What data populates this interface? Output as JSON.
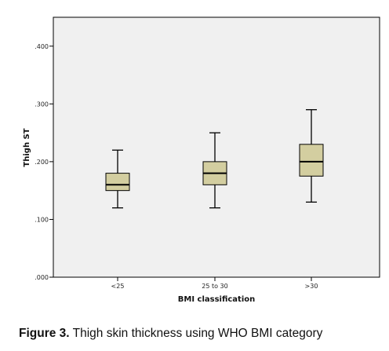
{
  "chart_data": {
    "type": "box",
    "categories": [
      "<25",
      "25 to 30",
      ">30"
    ],
    "boxes": [
      {
        "category": "<25",
        "min": 0.12,
        "q1": 0.15,
        "median": 0.16,
        "q3": 0.18,
        "max": 0.22
      },
      {
        "category": "25 to 30",
        "min": 0.12,
        "q1": 0.16,
        "median": 0.18,
        "q3": 0.2,
        "max": 0.25
      },
      {
        "category": ">30",
        "min": 0.13,
        "q1": 0.175,
        "median": 0.2,
        "q3": 0.23,
        "max": 0.29
      }
    ],
    "xlabel": "BMI classification",
    "ylabel": "Thigh ST",
    "ylim": [
      0.0,
      0.45
    ],
    "yticks": [
      0.0,
      0.1,
      0.2,
      0.3,
      0.4
    ],
    "ytick_labels": [
      ".000",
      ".100",
      ".200",
      ".300",
      ".400"
    ],
    "grid": false,
    "colors": {
      "plot_background": "#f0f0f0",
      "box_fill": "#d3cea0",
      "box_stroke": "#000000"
    }
  },
  "caption": {
    "label": "Figure 3.",
    "text": " Thigh skin thickness using WHO BMI category"
  }
}
